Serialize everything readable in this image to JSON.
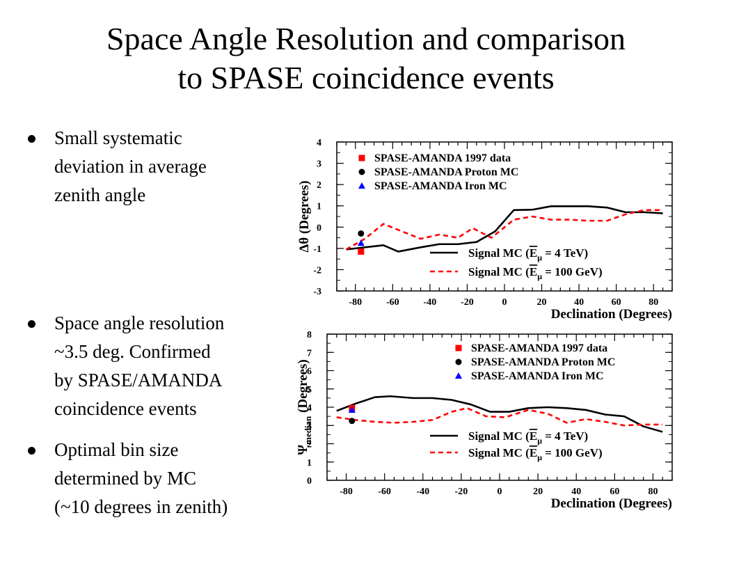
{
  "slide": {
    "title_line1": "Space Angle Resolution and comparison",
    "title_line2": "to SPASE coincidence events",
    "bullets_top": [
      [
        "Small systematic",
        "deviation in average",
        "zenith angle"
      ]
    ],
    "bullets_mid": [
      [
        "Space angle resolution",
        "~3.5 deg. Confirmed",
        "by SPASE/AMANDA",
        "coincidence events"
      ]
    ],
    "bullets_bot": [
      [
        "Optimal bin size",
        "determined by MC",
        "(~10 degrees in zenith)"
      ]
    ]
  },
  "colors": {
    "data_red": "#ff0000",
    "proton_black": "#000000",
    "iron_blue": "#0000ff",
    "mc100_red": "#ff0000"
  },
  "chart_data": [
    {
      "type": "line",
      "xlabel": "Declination (Degrees)",
      "ylabel": "Δθ (Degrees)",
      "xlim": [
        -90,
        90
      ],
      "ylim": [
        -3,
        4
      ],
      "xticks": [
        -80,
        -60,
        -40,
        -20,
        0,
        20,
        40,
        60,
        80
      ],
      "yticks": [
        -3,
        -2,
        -1,
        0,
        1,
        2,
        3,
        4
      ],
      "legend_points": [
        {
          "label": "SPASE-AMANDA 1997 data",
          "marker": "square",
          "color": "#ff0000"
        },
        {
          "label": "SPASE-AMANDA Proton MC",
          "marker": "circle",
          "color": "#000000"
        },
        {
          "label": "SPASE-AMANDA Iron MC",
          "marker": "triangle",
          "color": "#0000ff"
        }
      ],
      "legend_lines": [
        {
          "pre": "Signal MC (",
          "e": "E",
          "mu": "μ",
          "post": " = 4 TeV)",
          "style": "solid",
          "color": "#000000"
        },
        {
          "pre": "Signal MC (",
          "e": "E",
          "mu": "μ",
          "post": " = 100 GeV)",
          "style": "dashed",
          "color": "#ff0000"
        }
      ],
      "series": [
        {
          "style": "solid",
          "color": "#000000",
          "x": [
            -85,
            -75,
            -65,
            -57,
            -45,
            -35,
            -25,
            -15,
            -5,
            5,
            15,
            25,
            35,
            45,
            55,
            65,
            75,
            85
          ],
          "y": [
            -1.05,
            -0.95,
            -0.85,
            -1.15,
            -0.95,
            -0.8,
            -0.8,
            -0.7,
            -0.2,
            0.8,
            0.82,
            0.98,
            0.98,
            0.98,
            0.92,
            0.7,
            0.7,
            0.65
          ]
        },
        {
          "style": "dashed",
          "color": "#ff0000",
          "x": [
            -85,
            -75,
            -65,
            -55,
            -45,
            -35,
            -25,
            -17,
            -7,
            5,
            15,
            25,
            35,
            45,
            55,
            65,
            75,
            85
          ],
          "y": [
            -1.05,
            -0.55,
            0.15,
            -0.2,
            -0.55,
            -0.35,
            -0.5,
            -0.05,
            -0.5,
            0.35,
            0.5,
            0.35,
            0.35,
            0.3,
            0.3,
            0.6,
            0.8,
            0.8
          ]
        }
      ],
      "points": [
        {
          "marker": "square",
          "color": "#ff0000",
          "x": -77,
          "y": -1.15
        },
        {
          "marker": "circle",
          "color": "#000000",
          "x": -77,
          "y": -0.3
        },
        {
          "marker": "triangle",
          "color": "#0000ff",
          "x": -77,
          "y": -0.75
        }
      ]
    },
    {
      "type": "line",
      "xlabel": "Declination (Degrees)",
      "ylabel": "Ψ",
      "ylabel_sub": "median",
      "ylabel_post": " (Degrees)",
      "xlim": [
        -90,
        90
      ],
      "ylim": [
        0,
        8
      ],
      "xticks": [
        -80,
        -60,
        -40,
        -20,
        0,
        20,
        40,
        60,
        80
      ],
      "yticks": [
        0,
        1,
        2,
        3,
        4,
        5,
        6,
        7,
        8
      ],
      "legend_points": [
        {
          "label": "SPASE-AMANDA 1997 data",
          "marker": "square",
          "color": "#ff0000"
        },
        {
          "label": "SPASE-AMANDA Proton MC",
          "marker": "circle",
          "color": "#000000"
        },
        {
          "label": "SPASE-AMANDA Iron MC",
          "marker": "triangle",
          "color": "#0000ff"
        }
      ],
      "legend_lines": [
        {
          "pre": "Signal MC (",
          "e": "E",
          "mu": "μ",
          "post": " = 4 TeV)",
          "style": "solid",
          "color": "#000000"
        },
        {
          "pre": "Signal MC (",
          "e": "E",
          "mu": "μ",
          "post": " = 100 GeV)",
          "style": "dashed",
          "color": "#ff0000"
        }
      ],
      "series": [
        {
          "style": "solid",
          "color": "#000000",
          "x": [
            -85,
            -75,
            -65,
            -57,
            -45,
            -35,
            -25,
            -15,
            -5,
            5,
            15,
            25,
            35,
            45,
            55,
            65,
            75,
            85
          ],
          "y": [
            3.8,
            4.2,
            4.55,
            4.6,
            4.5,
            4.5,
            4.4,
            4.15,
            3.75,
            3.75,
            3.95,
            4.0,
            3.95,
            3.85,
            3.6,
            3.5,
            2.95,
            2.65
          ]
        },
        {
          "style": "dashed",
          "color": "#ff0000",
          "x": [
            -85,
            -75,
            -65,
            -55,
            -45,
            -35,
            -25,
            -17,
            -7,
            3,
            15,
            25,
            35,
            45,
            55,
            65,
            75,
            85
          ],
          "y": [
            3.45,
            3.3,
            3.2,
            3.15,
            3.2,
            3.3,
            3.75,
            3.95,
            3.5,
            3.45,
            3.85,
            3.65,
            3.15,
            3.35,
            3.2,
            3.0,
            3.05,
            3.05
          ]
        }
      ],
      "points": [
        {
          "marker": "square",
          "color": "#ff0000",
          "x": -77,
          "y": 3.95
        },
        {
          "marker": "circle",
          "color": "#000000",
          "x": -77,
          "y": 3.25
        },
        {
          "marker": "triangle",
          "color": "#0000ff",
          "x": -77,
          "y": 3.85
        }
      ]
    }
  ]
}
